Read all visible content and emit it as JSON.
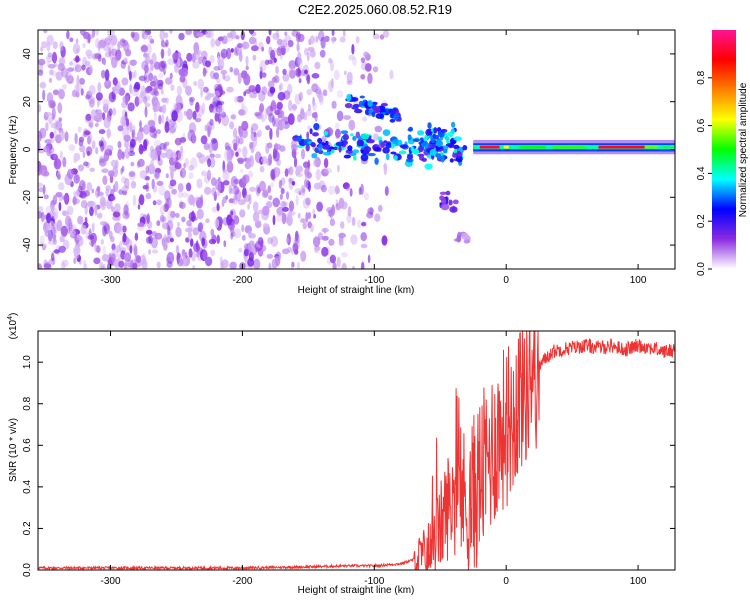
{
  "title": "C2E2.2025.060.08.52.R19",
  "chart_data": [
    {
      "type": "heatmap",
      "xlabel": "Height of straight line (km)",
      "ylabel": "Frequency (Hz)",
      "xlim": [
        -355,
        128
      ],
      "ylim": [
        -50,
        50
      ],
      "x_ticks": [
        -300,
        -200,
        -100,
        0,
        100
      ],
      "x_tick_labels": [
        "-300",
        "-200",
        "-100",
        "0",
        "100"
      ],
      "y_ticks": [
        -40,
        -20,
        0,
        20,
        40
      ],
      "y_tick_labels": [
        "-40",
        "-20",
        "0",
        "20",
        "40"
      ],
      "colorbar": {
        "label": "Normalized spectral amplitude",
        "range": [
          0,
          1
        ],
        "ticks": [
          0.0,
          0.2,
          0.4,
          0.6,
          0.8
        ],
        "tick_labels": [
          "0.0",
          "0.2",
          "0.4",
          "0.6",
          "0.8"
        ],
        "colors": [
          "#ffffff",
          "#8a2be2",
          "#0000ff",
          "#00ffff",
          "#00ff00",
          "#ffff00",
          "#ff8000",
          "#ff0000",
          "#ff1493"
        ]
      },
      "regions": [
        {
          "x_range": [
            -355,
            -150
          ],
          "freq_range": [
            -50,
            50
          ],
          "amplitude": "low",
          "pattern": "scattered noise"
        },
        {
          "x_range": [
            -150,
            -25
          ],
          "freq_center": 0,
          "amplitude": "medium",
          "pattern": "dispersed signal"
        },
        {
          "x_range": [
            -120,
            -80
          ],
          "freq_range": [
            15,
            22
          ],
          "amplitude": "medium",
          "pattern": "upper branch"
        },
        {
          "x_range": [
            -50,
            -40
          ],
          "freq_range": [
            -28,
            -18
          ],
          "amplitude": "low",
          "pattern": "lower branch"
        },
        {
          "x_range": [
            -25,
            128
          ],
          "freq_center": 1,
          "amplitude": "high",
          "pattern": "steady tone"
        }
      ]
    },
    {
      "type": "line",
      "xlabel": "Height of straight line (km)",
      "ylabel": "SNR (10 * v/v)",
      "y_multiplier": "(x10",
      "y_multiplier_exp": "4",
      "xlim": [
        -355,
        128
      ],
      "ylim": [
        0,
        1.15
      ],
      "x_ticks": [
        -300,
        -200,
        -100,
        0,
        100
      ],
      "x_tick_labels": [
        "-300",
        "-200",
        "-100",
        "0",
        "100"
      ],
      "y_ticks": [
        0.0,
        0.2,
        0.4,
        0.6,
        0.8,
        1.0
      ],
      "y_tick_labels": [
        "0.0",
        "0.2",
        "0.4",
        "0.6",
        "0.8",
        "1.0"
      ],
      "series_color": "#ee3333",
      "series": [
        {
          "x": [
            -355,
            -300,
            -250,
            -200,
            -150,
            -120,
            -100,
            -80,
            -70,
            -60,
            -55,
            -50,
            -45,
            -40,
            -35,
            -30,
            -25,
            -20,
            -15,
            -10,
            -5,
            0,
            5,
            10,
            15,
            20,
            25,
            30,
            35,
            40,
            50,
            60,
            70,
            80,
            90,
            100,
            110,
            120,
            128
          ],
          "y": [
            0.01,
            0.01,
            0.01,
            0.01,
            0.015,
            0.02,
            0.02,
            0.03,
            0.05,
            0.08,
            0.12,
            0.2,
            0.3,
            0.35,
            0.4,
            0.3,
            0.35,
            0.45,
            0.5,
            0.6,
            0.65,
            0.7,
            0.75,
            0.85,
            0.9,
            0.95,
            0.98,
            1.02,
            1.05,
            1.06,
            1.07,
            1.08,
            1.07,
            1.08,
            1.06,
            1.08,
            1.07,
            1.05,
            1.06
          ]
        }
      ]
    }
  ]
}
